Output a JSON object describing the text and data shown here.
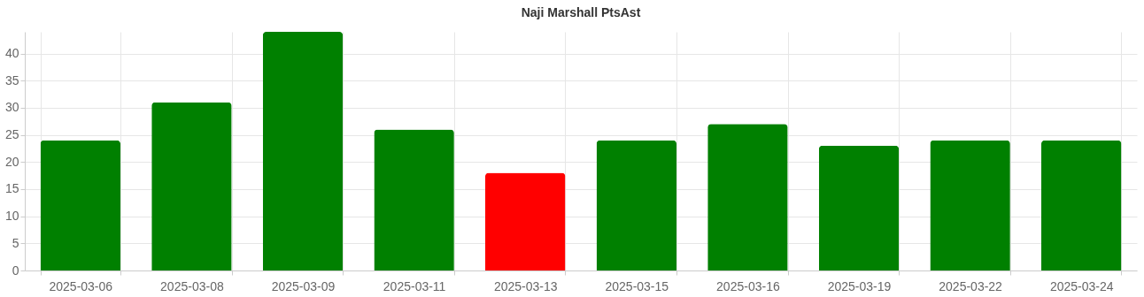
{
  "chart_data": {
    "type": "bar",
    "title": "Naji Marshall PtsAst",
    "categories": [
      "2025-03-06",
      "2025-03-08",
      "2025-03-09",
      "2025-03-11",
      "2025-03-13",
      "2025-03-15",
      "2025-03-16",
      "2025-03-19",
      "2025-03-22",
      "2025-03-24"
    ],
    "values": [
      24,
      31,
      44,
      26,
      18,
      24,
      27,
      23,
      24,
      24
    ],
    "colors": [
      "#008000",
      "#008000",
      "#008000",
      "#008000",
      "#ff0000",
      "#008000",
      "#008000",
      "#008000",
      "#008000",
      "#008000"
    ],
    "ylim": [
      0,
      44
    ],
    "yticks": [
      0,
      5,
      10,
      15,
      20,
      25,
      30,
      35,
      40
    ],
    "grid": true
  }
}
